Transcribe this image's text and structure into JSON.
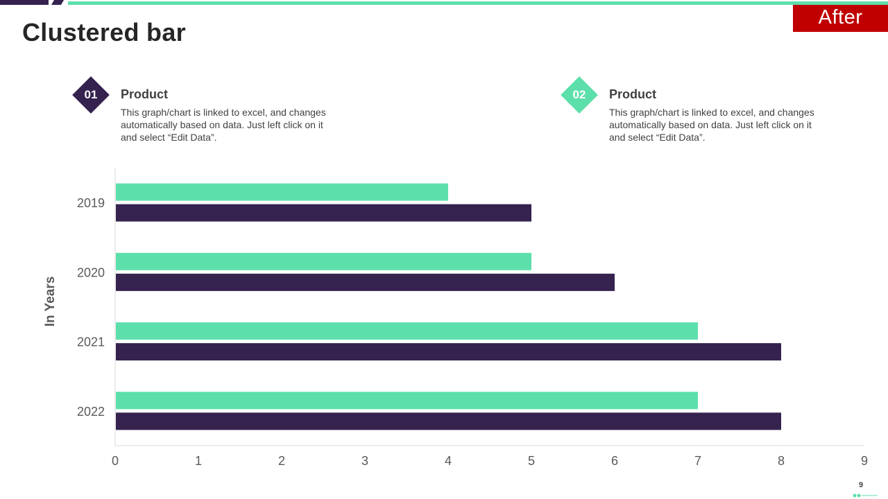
{
  "slide": {
    "title": "Clustered bar",
    "badge": "After",
    "page_number": "9"
  },
  "legend": [
    {
      "number": "01",
      "title": "Product",
      "description": "This graph/chart is linked to excel, and changes automatically based on data. Just left click on it and select “Edit Data”.",
      "color": "#35224f"
    },
    {
      "number": "02",
      "title": "Product",
      "description": "This graph/chart is linked to excel, and changes automatically based on data. Just left click on it and select “Edit Data”.",
      "color": "#5ddfab"
    }
  ],
  "colors": {
    "series1": "#5ddfab",
    "series2": "#35224f",
    "accent_red": "#c00000",
    "axis": "#d9d9d9",
    "text": "#595959"
  },
  "chart_data": {
    "type": "bar",
    "orientation": "horizontal",
    "categories": [
      "2019",
      "2020",
      "2021",
      "2022"
    ],
    "series": [
      {
        "name": "Product 02",
        "values": [
          4,
          5,
          7,
          7
        ]
      },
      {
        "name": "Product 01",
        "values": [
          5,
          6,
          8,
          8
        ]
      }
    ],
    "xlim": [
      0,
      9
    ],
    "xticks": [
      "0",
      "1",
      "2",
      "3",
      "4",
      "5",
      "6",
      "7",
      "8",
      "9"
    ],
    "ylabel": "In Years",
    "xlabel": "",
    "grid": false
  }
}
